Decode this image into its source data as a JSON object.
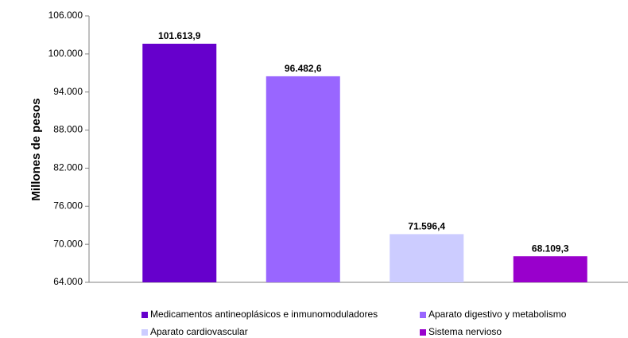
{
  "chart_data": {
    "type": "bar",
    "y_label": "Millones de pesos",
    "series": [
      {
        "name": "Medicamentos antineoplásicos e inmunomoduladores",
        "color": "#6600cc",
        "values": [
          101613.9
        ],
        "value_labels": [
          "101.613,9"
        ]
      },
      {
        "name": "Aparato digestivo y metabolismo",
        "color": "#9966ff",
        "values": [
          96482.6
        ],
        "value_labels": [
          "96.482,6"
        ]
      },
      {
        "name": "Aparato cardiovascular",
        "color": "#ccccff",
        "values": [
          71596.4
        ],
        "value_labels": [
          "71.596,4"
        ]
      },
      {
        "name": "Sistema nervioso",
        "color": "#9900cc",
        "values": [
          68109.3
        ],
        "value_labels": [
          "68.109,3"
        ]
      }
    ],
    "ylim": [
      64000,
      106000
    ],
    "yticks": [
      {
        "value": 64000,
        "label": "64.000"
      },
      {
        "value": 70000,
        "label": "70.000"
      },
      {
        "value": 76000,
        "label": "76.000"
      },
      {
        "value": 82000,
        "label": "82.000"
      },
      {
        "value": 88000,
        "label": "88.000"
      },
      {
        "value": 94000,
        "label": "94.000"
      },
      {
        "value": 100000,
        "label": "100.000"
      },
      {
        "value": 106000,
        "label": "106.000"
      }
    ],
    "legend": "bottom"
  }
}
